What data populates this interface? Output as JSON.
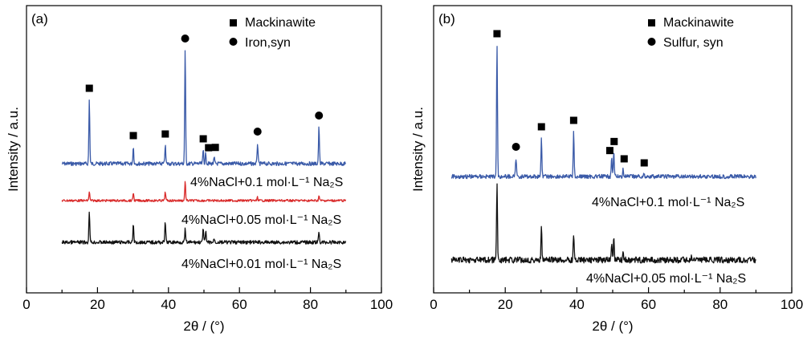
{
  "chart_data": [
    {
      "type": "line",
      "panel": "(a)",
      "xlabel": "2θ / (°)",
      "ylabel": "Intensity / a.u.",
      "xlim": [
        0,
        100
      ],
      "x_ticks": [
        0,
        20,
        40,
        60,
        80,
        100
      ],
      "y_ticks_shown": false,
      "grid": false,
      "legend": [
        {
          "marker": "square",
          "label": "Mackinawite"
        },
        {
          "marker": "circle",
          "label": "Iron,syn"
        }
      ],
      "legend_position": "top-right",
      "series": [
        {
          "name": "4%NaCl+0.1 mol·L⁻¹ Na₂S",
          "color": "#3a5aa8",
          "x_range": [
            10,
            90
          ],
          "baseline": 200,
          "peaks": [
            {
              "x": 17.7,
              "height": 80
            },
            {
              "x": 30.1,
              "height": 21
            },
            {
              "x": 39.1,
              "height": 23
            },
            {
              "x": 44.7,
              "height": 142
            },
            {
              "x": 49.8,
              "height": 17
            },
            {
              "x": 50.5,
              "height": 13
            },
            {
              "x": 52.9,
              "height": 7
            },
            {
              "x": 65.1,
              "height": 26
            },
            {
              "x": 82.4,
              "height": 46
            }
          ],
          "markers": [
            {
              "x": 17.7,
              "type": "square"
            },
            {
              "x": 30.1,
              "type": "square"
            },
            {
              "x": 39.1,
              "type": "square"
            },
            {
              "x": 44.7,
              "type": "circle"
            },
            {
              "x": 49.8,
              "type": "square"
            },
            {
              "x": 51.3,
              "type": "square"
            },
            {
              "x": 53.2,
              "type": "square"
            },
            {
              "x": 65.1,
              "type": "circle"
            },
            {
              "x": 82.4,
              "type": "circle"
            }
          ]
        },
        {
          "name": "4%NaCl+0.05 mol·L⁻¹ Na₂S",
          "color": "#d92b2b",
          "x_range": [
            10,
            90
          ],
          "baseline": 46,
          "peaks": [
            {
              "x": 17.7,
              "height": 11
            },
            {
              "x": 30.1,
              "height": 10
            },
            {
              "x": 39.1,
              "height": 11
            },
            {
              "x": 44.7,
              "height": 24
            },
            {
              "x": 65.1,
              "height": 4
            },
            {
              "x": 82.4,
              "height": 6
            }
          ]
        },
        {
          "name": "4%NaCl+0.01 mol·L⁻¹ Na₂S",
          "color": "#111111",
          "x_range": [
            10,
            90
          ],
          "baseline": 0,
          "peaks": [
            {
              "x": 17.7,
              "height": 40
            },
            {
              "x": 30.1,
              "height": 22
            },
            {
              "x": 39.1,
              "height": 26
            },
            {
              "x": 44.7,
              "height": 16
            },
            {
              "x": 49.8,
              "height": 18
            },
            {
              "x": 50.5,
              "height": 13
            },
            {
              "x": 52.9,
              "height": 5
            },
            {
              "x": 82.4,
              "height": 13
            }
          ]
        }
      ]
    },
    {
      "type": "line",
      "panel": "(b)",
      "xlabel": "2θ / (°)",
      "ylabel": "Intensity / a.u.",
      "xlim": [
        0,
        100
      ],
      "x_ticks": [
        0,
        20,
        40,
        60,
        80,
        100
      ],
      "y_ticks_shown": false,
      "grid": false,
      "legend": [
        {
          "marker": "square",
          "label": "Mackinawite"
        },
        {
          "marker": "circle",
          "label": "Sulfur, syn"
        }
      ],
      "legend_position": "top-right",
      "series": [
        {
          "name": "4%NaCl+0.1 mol·L⁻¹ Na₂S",
          "color": "#3a5aa8",
          "x_range": [
            5,
            90
          ],
          "baseline": 104,
          "peaks": [
            {
              "x": 17.7,
              "height": 164
            },
            {
              "x": 23.0,
              "height": 23
            },
            {
              "x": 30.1,
              "height": 48
            },
            {
              "x": 39.1,
              "height": 56
            },
            {
              "x": 49.7,
              "height": 25
            },
            {
              "x": 50.3,
              "height": 30
            },
            {
              "x": 52.9,
              "height": 9
            },
            {
              "x": 58.8,
              "height": 3
            }
          ],
          "markers": [
            {
              "x": 17.7,
              "type": "square"
            },
            {
              "x": 23.0,
              "type": "circle"
            },
            {
              "x": 30.1,
              "type": "square"
            },
            {
              "x": 39.1,
              "type": "square"
            },
            {
              "x": 49.2,
              "type": "square"
            },
            {
              "x": 50.4,
              "type": "square"
            },
            {
              "x": 53.2,
              "type": "square"
            },
            {
              "x": 58.8,
              "type": "square"
            }
          ]
        },
        {
          "name": "4%NaCl+0.05 mol·L⁻¹ Na₂S",
          "color": "#111111",
          "x_range": [
            5,
            90
          ],
          "baseline": 0,
          "peaks": [
            {
              "x": 17.7,
              "height": 94
            },
            {
              "x": 30.1,
              "height": 39
            },
            {
              "x": 39.1,
              "height": 33
            },
            {
              "x": 49.7,
              "height": 22
            },
            {
              "x": 50.3,
              "height": 26
            },
            {
              "x": 52.9,
              "height": 12
            },
            {
              "x": 72.0,
              "height": 4
            }
          ]
        }
      ]
    }
  ]
}
